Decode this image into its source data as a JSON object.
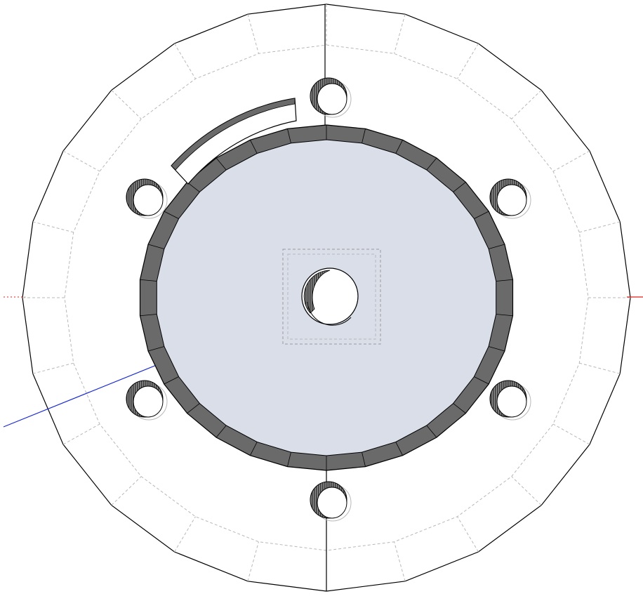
{
  "viewport": {
    "label": "",
    "background": "#ffffff"
  },
  "colors": {
    "edge": "#000000",
    "hidden_edge": "#b8b8b8",
    "face_fill": "#d9dee8",
    "wall_fill": "#6a6a6a",
    "axis_red": "#e0201a",
    "axis_green": "#1f9a2c",
    "axis_blue": "#1c2bd0"
  },
  "model": {
    "name": "",
    "bolt_hole_count": 6,
    "outer_ring_segments": 24,
    "rim_segments": 30
  },
  "icons": {
    "origin": "axes-origin-icon"
  }
}
